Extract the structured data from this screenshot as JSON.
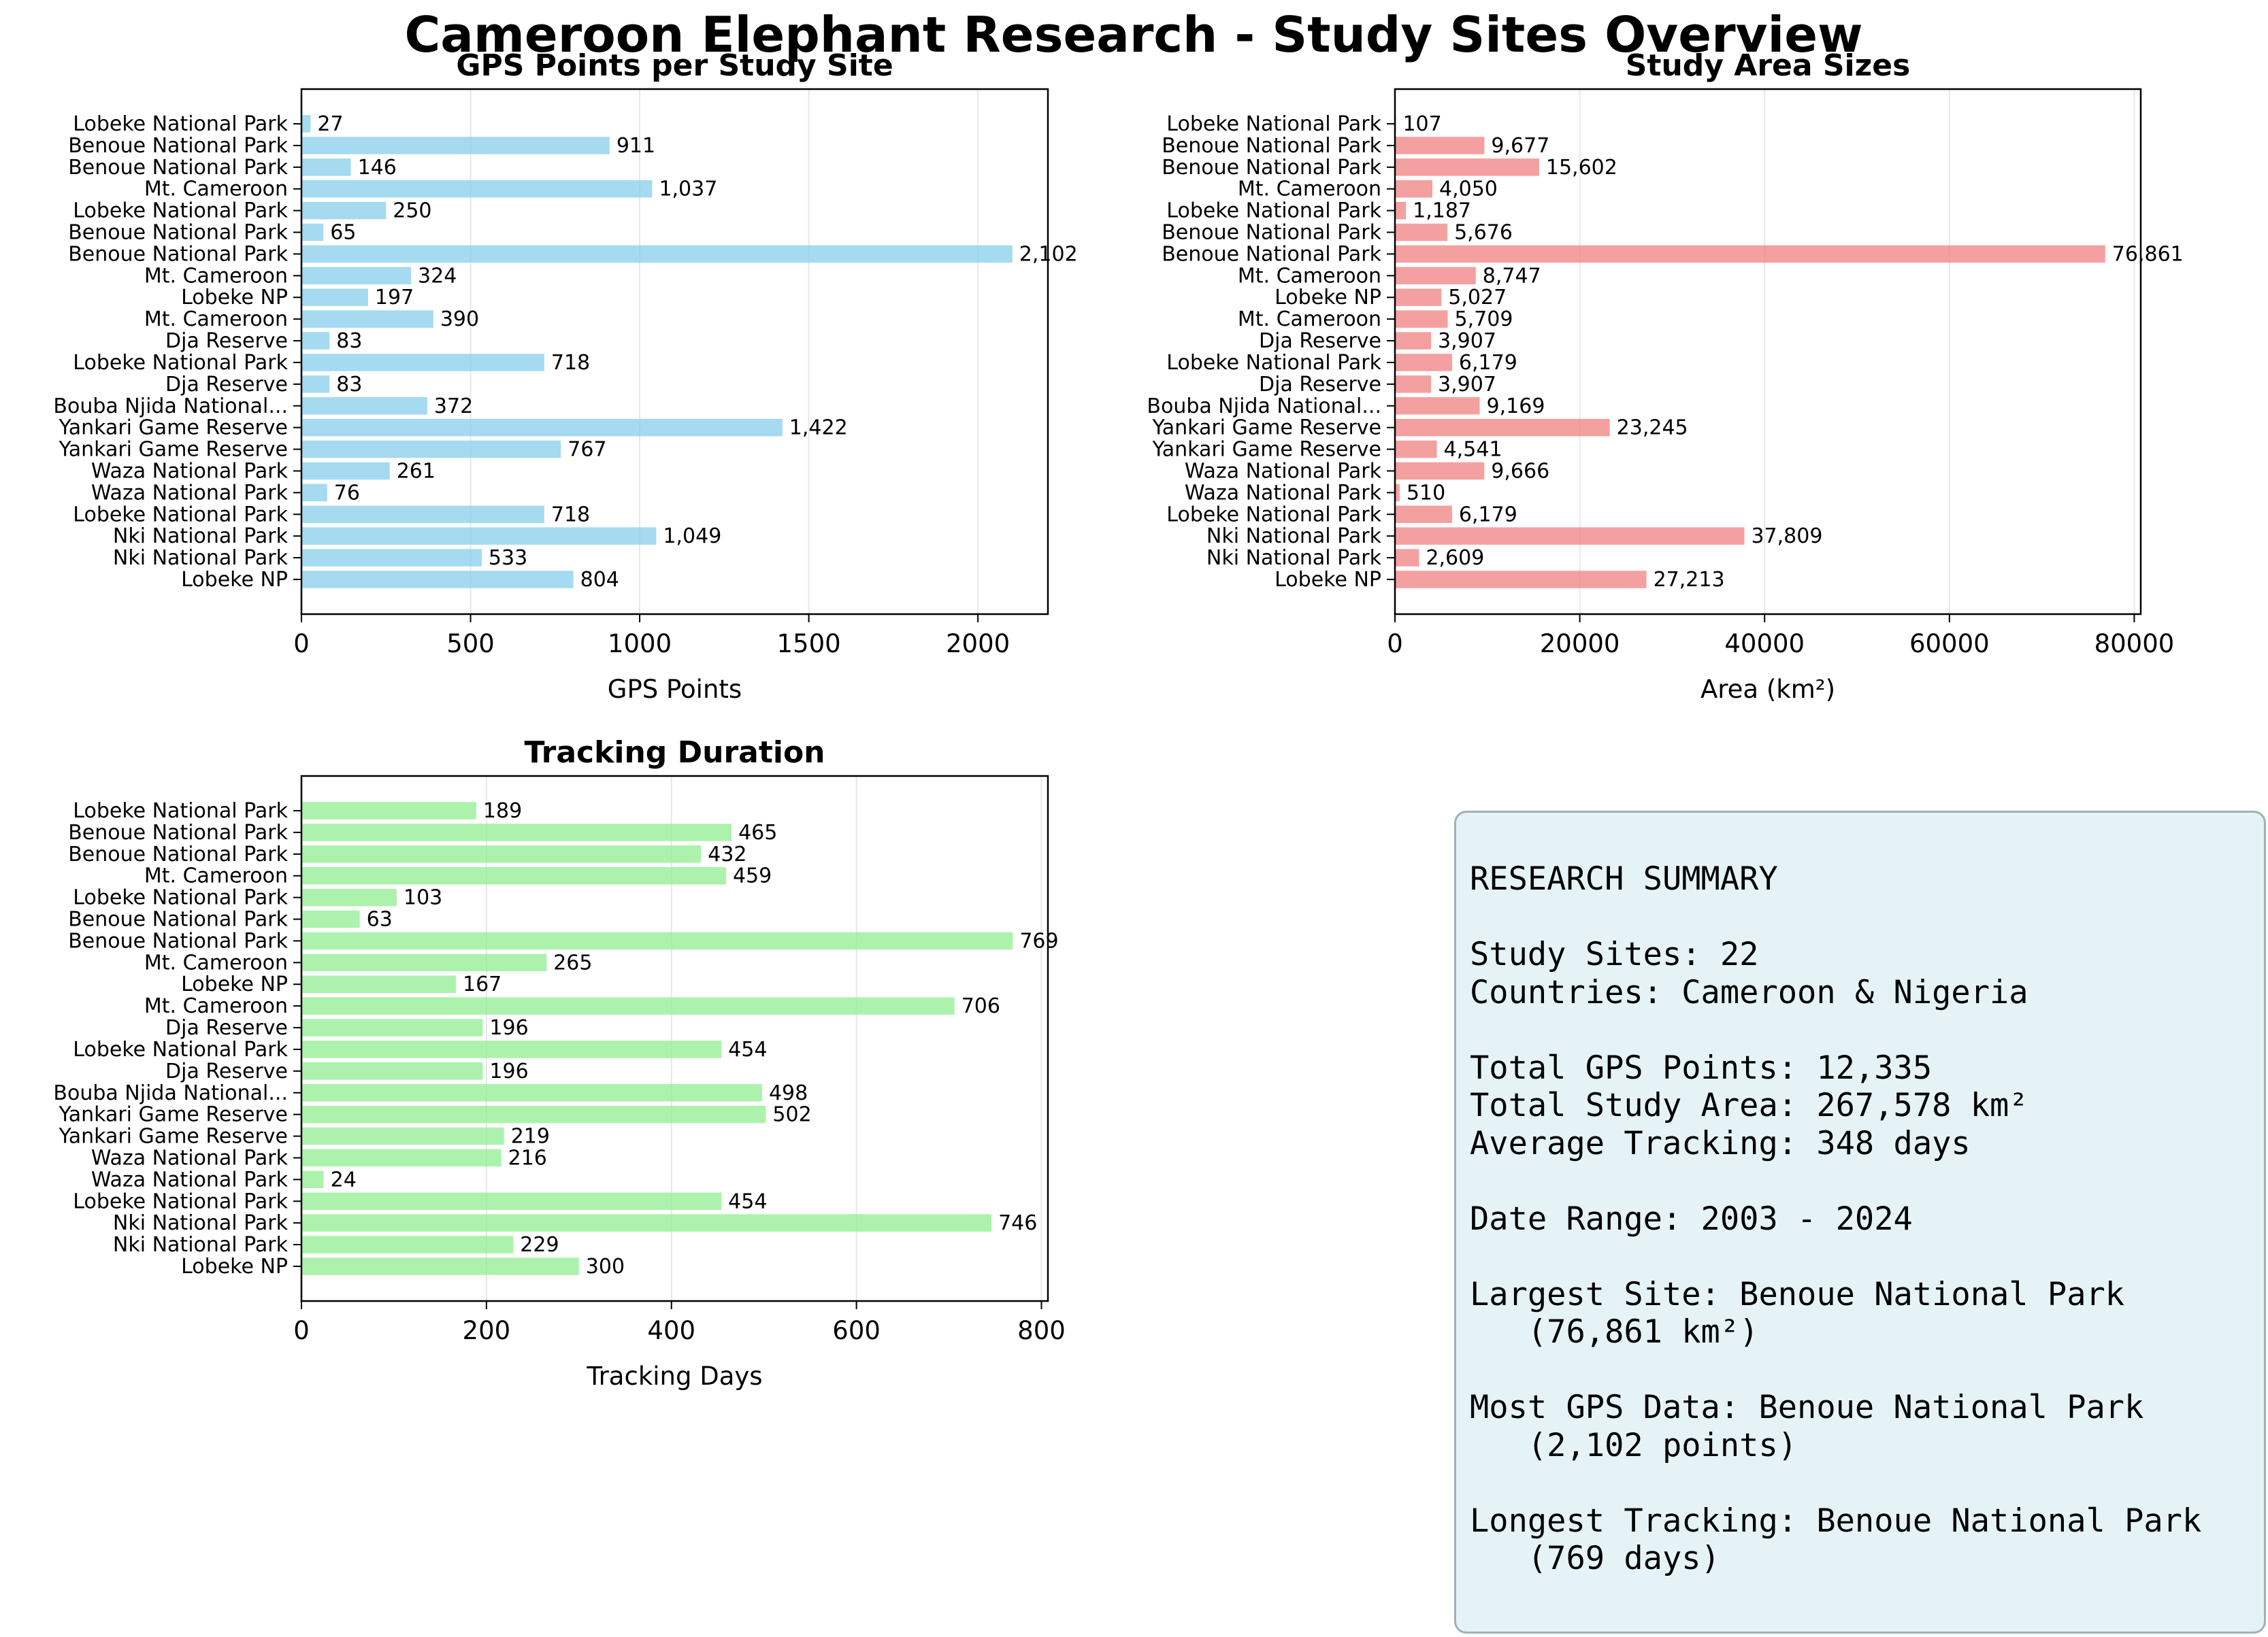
{
  "figure": {
    "title": "Cameroon Elephant Research - Study Sites Overview"
  },
  "chart_data": [
    {
      "type": "bar",
      "orientation": "horizontal",
      "title": "GPS Points per Study Site",
      "xlabel": "GPS Points",
      "ylabel": "",
      "xlim": [
        0,
        2207
      ],
      "xticks": [
        0,
        500,
        1000,
        1500,
        2000
      ],
      "grid": "x",
      "color": "#87ceeb",
      "categories": [
        "Lobeke National Park",
        "Benoue National Park",
        "Benoue National Park",
        "Mt. Cameroon",
        "Lobeke National Park",
        "Benoue National Park",
        "Benoue National Park",
        "Mt. Cameroon",
        "Lobeke NP",
        "Mt. Cameroon",
        "Dja Reserve",
        "Lobeke National Park",
        "Dja Reserve",
        "Bouba Njida National...",
        "Yankari Game Reserve",
        "Yankari Game Reserve",
        "Waza National Park",
        "Waza National Park",
        "Lobeke National Park",
        "Nki National Park",
        "Nki National Park",
        "Lobeke NP"
      ],
      "values": [
        27,
        911,
        146,
        1037,
        250,
        65,
        2102,
        324,
        197,
        390,
        83,
        718,
        83,
        372,
        1422,
        767,
        261,
        76,
        718,
        1049,
        533,
        804
      ],
      "value_labels": [
        "27",
        "911",
        "146",
        "1,037",
        "250",
        "65",
        "2,102",
        "324",
        "197",
        "390",
        "83",
        "718",
        "83",
        "372",
        "1,422",
        "767",
        "261",
        "76",
        "718",
        "1,049",
        "533",
        "804"
      ]
    },
    {
      "type": "bar",
      "orientation": "horizontal",
      "title": "Study Area Sizes",
      "xlabel": "Area (km²)",
      "ylabel": "",
      "xlim": [
        0,
        80704
      ],
      "xticks": [
        0,
        20000,
        40000,
        60000,
        80000
      ],
      "grid": "x",
      "color": "#f08080",
      "categories": [
        "Lobeke National Park",
        "Benoue National Park",
        "Benoue National Park",
        "Mt. Cameroon",
        "Lobeke National Park",
        "Benoue National Park",
        "Benoue National Park",
        "Mt. Cameroon",
        "Lobeke NP",
        "Mt. Cameroon",
        "Dja Reserve",
        "Lobeke National Park",
        "Dja Reserve",
        "Bouba Njida National...",
        "Yankari Game Reserve",
        "Yankari Game Reserve",
        "Waza National Park",
        "Waza National Park",
        "Lobeke National Park",
        "Nki National Park",
        "Nki National Park",
        "Lobeke NP"
      ],
      "values": [
        107,
        9677,
        15602,
        4050,
        1187,
        5676,
        76861,
        8747,
        5027,
        5709,
        3907,
        6179,
        3907,
        9169,
        23245,
        4541,
        9666,
        510,
        6179,
        37809,
        2609,
        27213
      ],
      "value_labels": [
        "107",
        "9,677",
        "15,602",
        "4,050",
        "1,187",
        "5,676",
        "76,861",
        "8,747",
        "5,027",
        "5,709",
        "3,907",
        "6,179",
        "3,907",
        "9,169",
        "23,245",
        "4,541",
        "9,666",
        "510",
        "6,179",
        "37,809",
        "2,609",
        "27,213"
      ]
    },
    {
      "type": "bar",
      "orientation": "horizontal",
      "title": "Tracking Duration",
      "xlabel": "Tracking Days",
      "ylabel": "",
      "xlim": [
        0,
        807
      ],
      "xticks": [
        0,
        200,
        400,
        600,
        800
      ],
      "grid": "x",
      "color": "#90ee90",
      "categories": [
        "Lobeke National Park",
        "Benoue National Park",
        "Benoue National Park",
        "Mt. Cameroon",
        "Lobeke National Park",
        "Benoue National Park",
        "Benoue National Park",
        "Mt. Cameroon",
        "Lobeke NP",
        "Mt. Cameroon",
        "Dja Reserve",
        "Lobeke National Park",
        "Dja Reserve",
        "Bouba Njida National...",
        "Yankari Game Reserve",
        "Yankari Game Reserve",
        "Waza National Park",
        "Waza National Park",
        "Lobeke National Park",
        "Nki National Park",
        "Nki National Park",
        "Lobeke NP"
      ],
      "values": [
        189,
        465,
        432,
        459,
        103,
        63,
        769,
        265,
        167,
        706,
        196,
        454,
        196,
        498,
        502,
        219,
        216,
        24,
        454,
        746,
        229,
        300
      ],
      "value_labels": [
        "189",
        "465",
        "432",
        "459",
        "103",
        "63",
        "769",
        "265",
        "167",
        "706",
        "196",
        "454",
        "196",
        "498",
        "502",
        "219",
        "216",
        "24",
        "454",
        "746",
        "229",
        "300"
      ]
    }
  ],
  "summary": {
    "lines": [
      "RESEARCH SUMMARY",
      "",
      "Study Sites: 22",
      "Countries: Cameroon & Nigeria",
      "",
      "Total GPS Points: 12,335",
      "Total Study Area: 267,578 km²",
      "Average Tracking: 348 days",
      "",
      "Date Range: 2003 - 2024",
      "",
      "Largest Site: Benoue National Park",
      "   (76,861 km²)",
      "",
      "Most GPS Data: Benoue National Park",
      "   (2,102 points)",
      "",
      "Longest Tracking: Benoue National Park",
      "   (769 days)"
    ],
    "background": "#e5f3f6",
    "border": "#9fb1b6"
  }
}
